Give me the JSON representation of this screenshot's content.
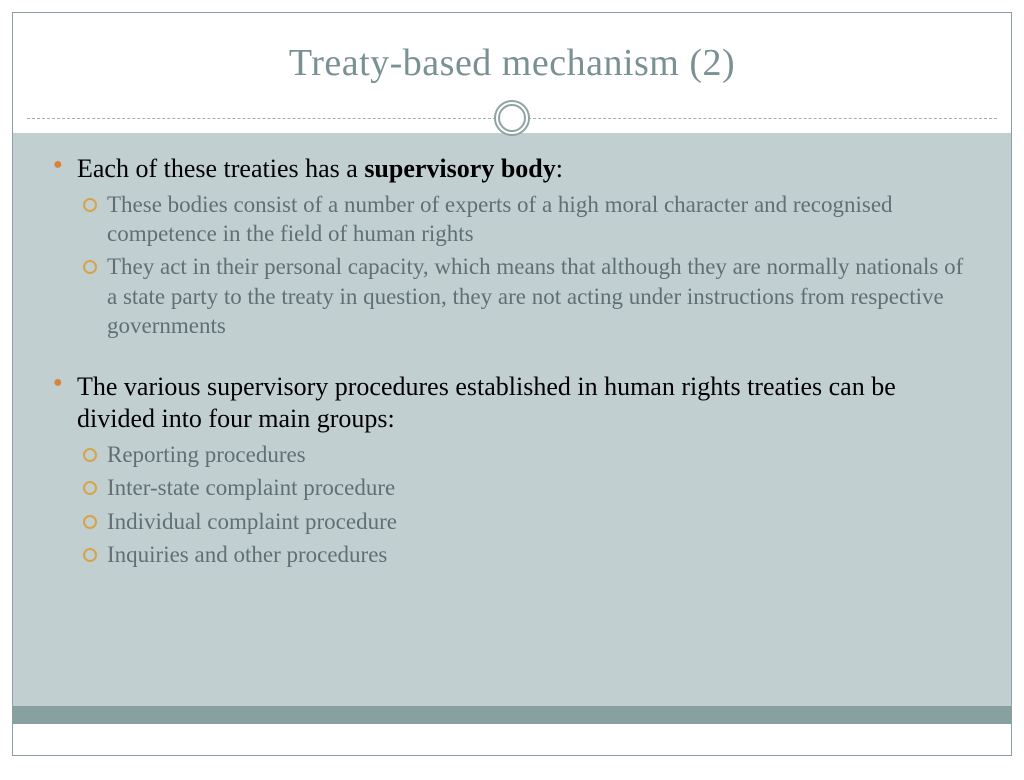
{
  "title": "Treaty-based mechanism (2)",
  "colors": {
    "title_color": "#7a9194",
    "body_bg": "#c2cfd1",
    "footer_bar": "#88a0a0",
    "border": "#88a0a0",
    "bullet_main": "#d4853a",
    "bullet_sub": "#d4a44a",
    "main_text": "#000000",
    "sub_text": "#5f7074"
  },
  "typography": {
    "title_size_pt": 28,
    "main_size_pt": 20,
    "sub_size_pt": 17,
    "font_family": "Georgia"
  },
  "bullets": {
    "b1_pre": "Each of these treaties has a ",
    "b1_bold": "supervisory body",
    "b1_post": ":",
    "b1_sub1": "These bodies consist of a number of experts of a high moral character and recognised competence in the field of human rights",
    "b1_sub2": "They act in their personal capacity, which means that although they are normally nationals of a state party to the treaty in question, they are not acting under instructions from respective governments",
    "b2": "The various supervisory procedures established in human rights treaties can be divided into four main groups:",
    "b2_sub1": "Reporting procedures",
    "b2_sub2": "Inter-state complaint procedure",
    "b2_sub3": "Individual complaint procedure",
    "b2_sub4": "Inquiries and other procedures"
  }
}
